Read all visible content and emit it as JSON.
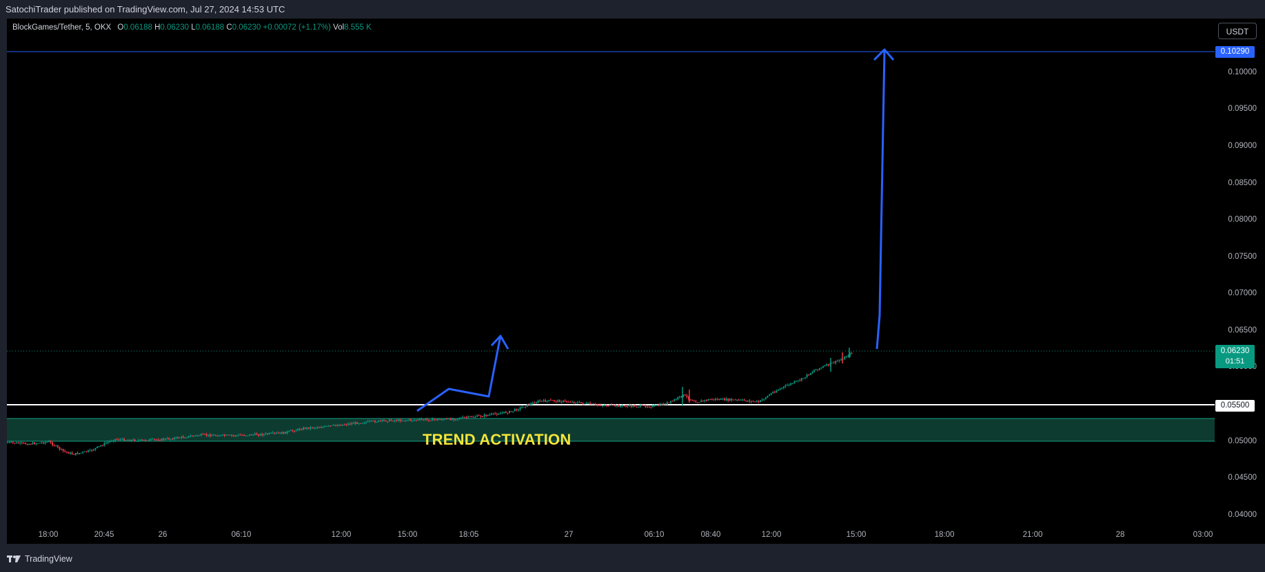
{
  "publisher": "SatochiTrader published on TradingView.com, Jul 27, 2024 14:53 UTC",
  "legend": {
    "symbol": "BlockGames/Tether, 5, OKX",
    "o_label": "O",
    "o_value": "0.06188",
    "h_label": "H",
    "h_value": "0.06230",
    "l_label": "L",
    "l_value": "0.06188",
    "c_label": "C",
    "c_value": "0.06230",
    "change": "+0.00072 (+1.17%)",
    "vol_label": "Vol",
    "vol_value": "8.555 K"
  },
  "currency_button": "USDT",
  "price_axis": [
    "0.10000",
    "0.09500",
    "0.09000",
    "0.08500",
    "0.08000",
    "0.07500",
    "0.07000",
    "0.06500",
    "0.06000",
    "0.05000",
    "0.04500",
    "0.04000"
  ],
  "target_tag": "0.10290",
  "current_price_tag": "0.06230",
  "countdown": "01:51",
  "support_tag": "0.05500",
  "time_axis": [
    "18:00",
    "20:45",
    "26",
    "06:10",
    "12:00",
    "15:00",
    "18:05",
    "27",
    "06:10",
    "08:40",
    "12:00",
    "15:00",
    "18:00",
    "21:00",
    "28",
    "03:00"
  ],
  "annotation": "TREND ACTIVATION",
  "brand": "TradingView",
  "colors": {
    "up": "#089981",
    "down": "#f23645",
    "drawing": "#2962ff",
    "zone": "#0d3b30",
    "annotation": "#f5e53a"
  }
}
